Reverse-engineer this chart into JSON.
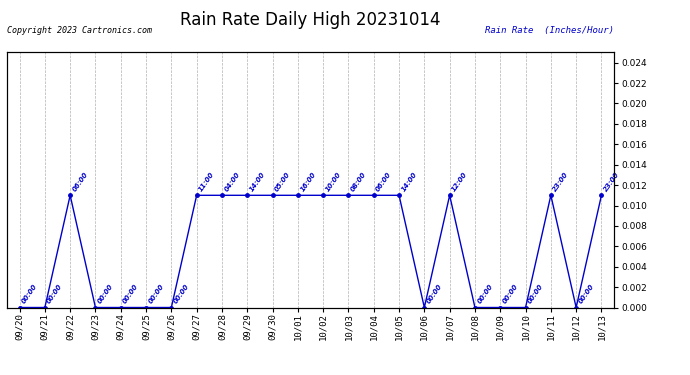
{
  "title": "Rain Rate Daily High 20231014",
  "copyright_text": "Copyright 2023 Cartronics.com",
  "legend_label": "Rain Rate  (Inches/Hour)",
  "ylim": [
    0.0,
    0.025
  ],
  "yticks": [
    0.0,
    0.002,
    0.004,
    0.006,
    0.008,
    0.01,
    0.012,
    0.014,
    0.016,
    0.018,
    0.02,
    0.022,
    0.024
  ],
  "line_color": "#0000cc",
  "grid_color": "#b0b0b0",
  "background_color": "#ffffff",
  "title_fontsize": 12,
  "x_dates": [
    "09/20",
    "09/21",
    "09/22",
    "09/23",
    "09/24",
    "09/25",
    "09/26",
    "09/27",
    "09/28",
    "09/29",
    "09/30",
    "10/01",
    "10/02",
    "10/03",
    "10/04",
    "10/05",
    "10/06",
    "10/07",
    "10/08",
    "10/09",
    "10/10",
    "10/11",
    "10/12",
    "10/13"
  ],
  "y_values": [
    0.0,
    0.0,
    0.011,
    0.0,
    0.0,
    0.0,
    0.0,
    0.011,
    0.011,
    0.011,
    0.011,
    0.011,
    0.011,
    0.011,
    0.011,
    0.011,
    0.0,
    0.011,
    0.0,
    0.0,
    0.0,
    0.011,
    0.0,
    0.011
  ],
  "time_labels": [
    "00:00",
    "00:00",
    "06:00",
    "00:00",
    "00:00",
    "00:00",
    "00:00",
    "11:00",
    "04:00",
    "14:00",
    "05:00",
    "16:00",
    "10:00",
    "08:00",
    "06:00",
    "14:00",
    "00:00",
    "12:00",
    "00:00",
    "00:00",
    "00:00",
    "23:00",
    "00:00",
    "23:00"
  ]
}
